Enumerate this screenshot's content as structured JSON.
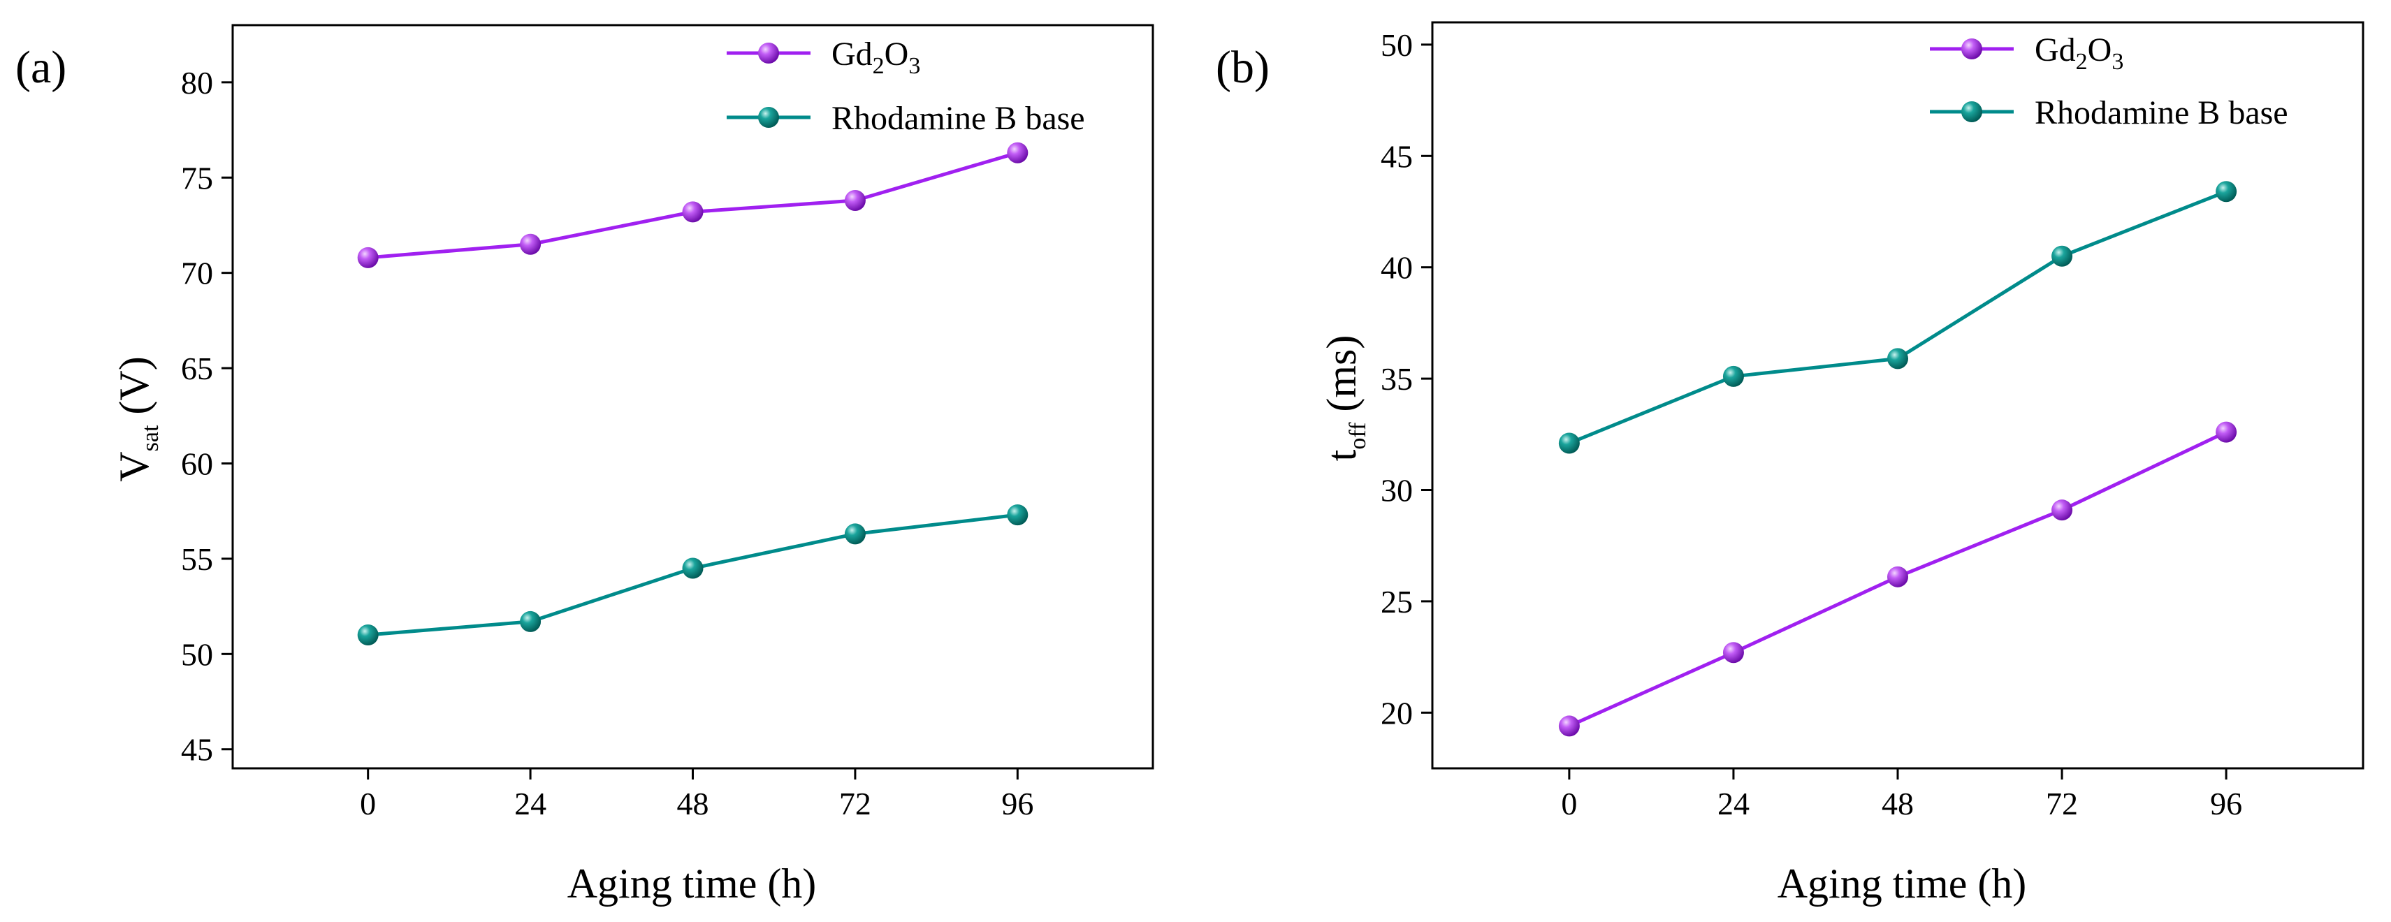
{
  "chart_data": [
    {
      "panel_label": "(a)",
      "type": "line",
      "x": [
        0,
        24,
        48,
        72,
        96
      ],
      "xlim": [
        -20,
        116
      ],
      "ylim": [
        44,
        83
      ],
      "xticks": [
        "0",
        "24",
        "48",
        "72",
        "96"
      ],
      "yticks": [
        "45",
        "50",
        "55",
        "60",
        "65",
        "70",
        "75",
        "80"
      ],
      "xlabel": "Aging time (h)",
      "ylabel": {
        "main": "V",
        "sub": "sat",
        "rest": " (V)"
      },
      "grid": false,
      "legend_position": "top-right",
      "series": [
        {
          "name": {
            "main": "Gd",
            "sub1": "2",
            "mid": "O",
            "sub2": "3"
          },
          "color": "#a020f0",
          "marker": "sphere",
          "values": [
            70.8,
            71.5,
            73.2,
            73.8,
            76.3
          ]
        },
        {
          "name": {
            "main": "Rhodamine B base"
          },
          "color": "#008b8b",
          "marker": "sphere",
          "values": [
            51.0,
            51.7,
            54.5,
            56.3,
            57.3
          ]
        }
      ]
    },
    {
      "panel_label": "(b)",
      "type": "line",
      "x": [
        0,
        24,
        48,
        72,
        96
      ],
      "xlim": [
        -20,
        116
      ],
      "ylim": [
        17.5,
        51
      ],
      "xticks": [
        "0",
        "24",
        "48",
        "72",
        "96"
      ],
      "yticks": [
        "20",
        "25",
        "30",
        "35",
        "40",
        "45",
        "50"
      ],
      "xlabel": "Aging time (h)",
      "ylabel": {
        "main": "t",
        "sub": "off",
        "rest": " (ms)"
      },
      "grid": false,
      "legend_position": "top-right",
      "series": [
        {
          "name": {
            "main": "Gd",
            "sub1": "2",
            "mid": "O",
            "sub2": "3"
          },
          "color": "#a020f0",
          "marker": "sphere",
          "values": [
            19.4,
            22.7,
            26.1,
            29.1,
            32.6
          ]
        },
        {
          "name": {
            "main": "Rhodamine B base"
          },
          "color": "#008b8b",
          "marker": "sphere",
          "values": [
            32.1,
            35.1,
            35.9,
            40.5,
            43.4
          ]
        }
      ]
    }
  ]
}
